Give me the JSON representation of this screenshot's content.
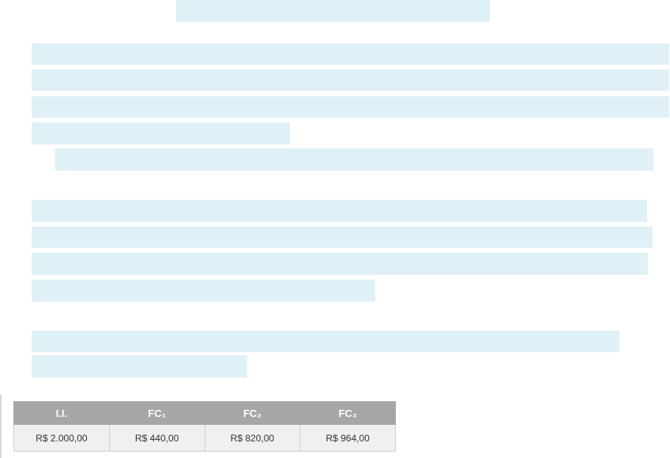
{
  "table": {
    "header": [
      "I.I.",
      "FC₁",
      "FC₂",
      "FC₃"
    ],
    "rows": [
      [
        "R$ 2.000,00",
        "R$ 440,00",
        "R$ 820,00",
        "R$ 964,00"
      ]
    ]
  }
}
